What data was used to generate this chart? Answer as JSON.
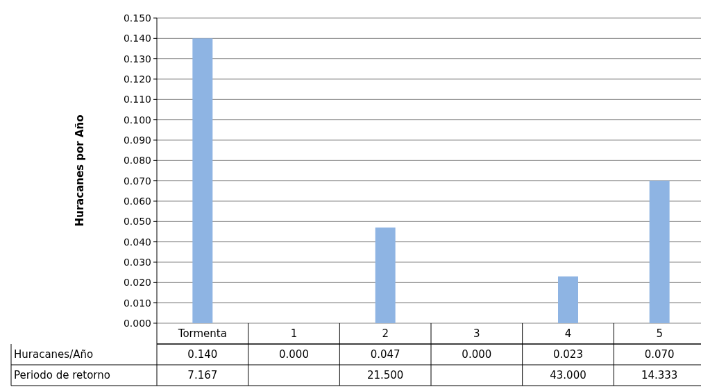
{
  "chart_data": {
    "type": "bar",
    "ylabel": "Huracanes por Año",
    "categories": [
      "Tormenta",
      "1",
      "2",
      "3",
      "4",
      "5"
    ],
    "series": [
      {
        "name": "Huracanes/Año",
        "color": "#8eb4e3",
        "values": [
          0.14,
          0,
          0.047,
          0,
          0.023,
          0.07
        ],
        "value_labels": [
          "0.140",
          "0.000",
          "0.047",
          "0.000",
          "0.023",
          "0.070"
        ]
      }
    ],
    "ylim": [
      0,
      0.15
    ],
    "yticks": [
      {
        "value": 0,
        "label": "0.000"
      },
      {
        "value": 0.01,
        "label": "0.010"
      },
      {
        "value": 0.02,
        "label": "0.020"
      },
      {
        "value": 0.03,
        "label": "0.030"
      },
      {
        "value": 0.04,
        "label": "0.040"
      },
      {
        "value": 0.05,
        "label": "0.050"
      },
      {
        "value": 0.06,
        "label": "0.060"
      },
      {
        "value": 0.07,
        "label": "0.070"
      },
      {
        "value": 0.08,
        "label": "0.080"
      },
      {
        "value": 0.09,
        "label": "0.090"
      },
      {
        "value": 0.1,
        "label": "0.100"
      },
      {
        "value": 0.11,
        "label": "0.110"
      },
      {
        "value": 0.12,
        "label": "0.120"
      },
      {
        "value": 0.13,
        "label": "0.130"
      },
      {
        "value": 0.14,
        "label": "0.140"
      },
      {
        "value": 0.15,
        "label": "0.150"
      }
    ],
    "grid": "y",
    "annotations": [
      "Periodo de retorno",
      "7.167",
      "21.500",
      "43.000",
      "14.333"
    ]
  }
}
